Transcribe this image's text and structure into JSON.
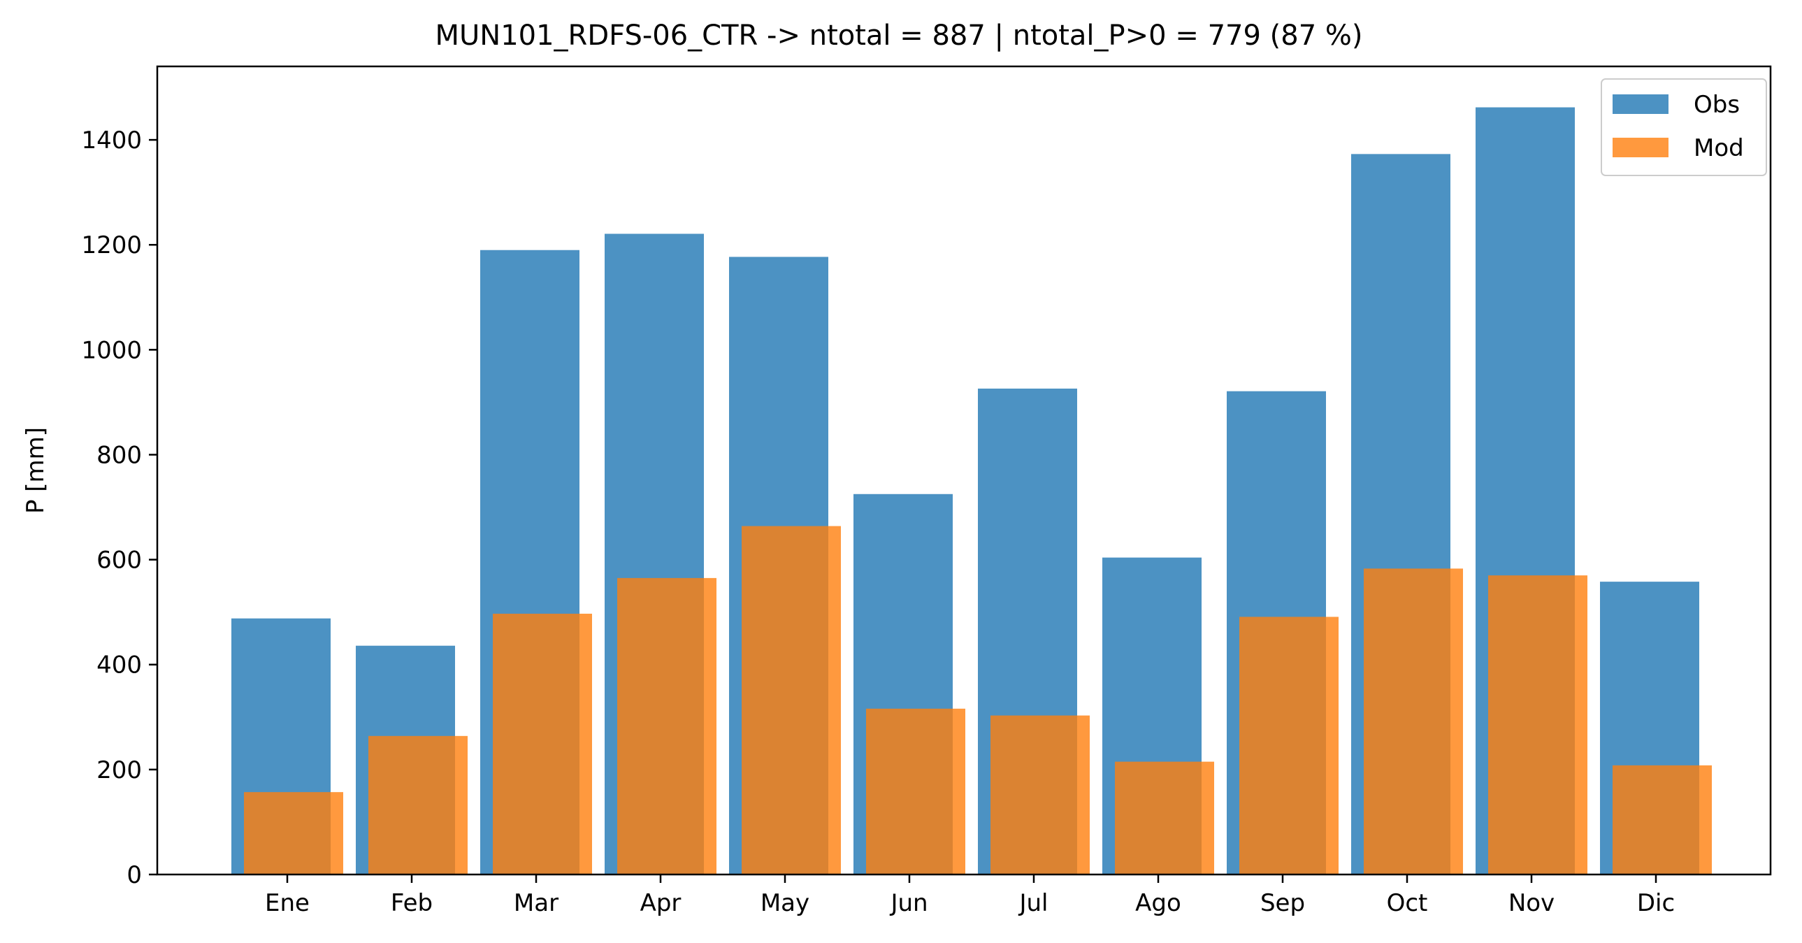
{
  "chart_data": {
    "type": "bar",
    "title": "MUN101_RDFS-06_CTR -> ntotal = 887 | ntotal_P>0 = 779 (87 %)",
    "xlabel": "",
    "ylabel": "P [mm]",
    "categories": [
      "Ene",
      "Feb",
      "Mar",
      "Apr",
      "May",
      "Jun",
      "Jul",
      "Ago",
      "Sep",
      "Oct",
      "Nov",
      "Dic"
    ],
    "series": [
      {
        "name": "Obs",
        "color": "#1f77b4",
        "opacity": 0.8,
        "values": [
          488,
          436,
          1190,
          1221,
          1177,
          725,
          926,
          604,
          921,
          1373,
          1462,
          558
        ]
      },
      {
        "name": "Mod",
        "color": "#ff7f0e",
        "opacity": 0.8,
        "values": [
          157,
          264,
          497,
          565,
          664,
          316,
          303,
          215,
          491,
          583,
          570,
          208
        ]
      }
    ],
    "ylim": [
      0,
      1540
    ],
    "yticks": [
      0,
      200,
      400,
      600,
      800,
      1000,
      1200,
      1400
    ],
    "grid": false,
    "legend_position": "top-right"
  }
}
